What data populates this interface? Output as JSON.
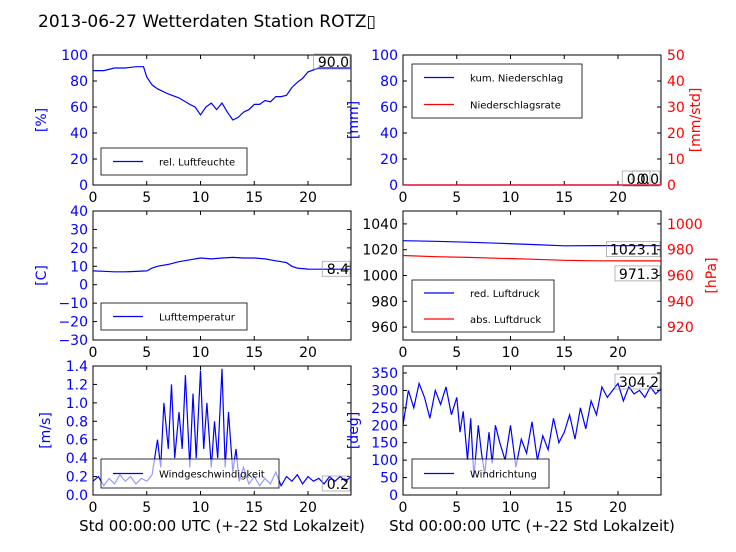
{
  "figure_title": "2013-06-27 Wetterdaten Station ROTZ▯",
  "colors": {
    "primary": "#0000ff",
    "secondary": "#ff0000",
    "axis": "#000000"
  },
  "chart_data": [
    {
      "id": "humidity",
      "type": "line",
      "title": "",
      "xlabel": "",
      "ylabel": "[%]",
      "ylabel_color": "#0000ff",
      "xlim": [
        0,
        24
      ],
      "ylim": [
        0,
        100
      ],
      "xticks": [
        "0",
        "5",
        "10",
        "15",
        "20"
      ],
      "yticks": [
        "0",
        "20",
        "40",
        "60",
        "80",
        "100"
      ],
      "current_value": "90.0",
      "legend_position": "lower-center",
      "series": [
        {
          "name": "rel. Luftfeuchte",
          "color": "#0000ff",
          "x": [
            0,
            1,
            2,
            3,
            4,
            4.7,
            5,
            5.5,
            6,
            7,
            8,
            9,
            9.5,
            10,
            10.5,
            11,
            11.5,
            12,
            12.5,
            13,
            13.5,
            14,
            14.5,
            15,
            15.5,
            16,
            16.5,
            17,
            17.5,
            18,
            18.5,
            19,
            19.5,
            20,
            21,
            22,
            23,
            24
          ],
          "y": [
            88,
            88,
            90,
            90,
            91,
            91,
            83,
            77,
            74,
            70,
            67,
            62,
            60,
            54,
            60,
            63,
            58,
            63,
            56,
            50,
            52,
            56,
            58,
            62,
            62,
            65,
            64,
            68,
            68,
            69,
            75,
            79,
            82,
            87,
            90,
            90,
            90,
            90
          ]
        }
      ]
    },
    {
      "id": "precipitation",
      "type": "line",
      "title": "",
      "xlabel": "",
      "ylabel": "[mm]",
      "ylabel_color": "#0000ff",
      "ylabel_right": "[mm/std]",
      "ylabel_right_color": "#ff0000",
      "xlim": [
        0,
        24
      ],
      "ylim": [
        0,
        100
      ],
      "ylim_right": [
        0,
        50
      ],
      "xticks": [
        "0",
        "5",
        "10",
        "15",
        "20"
      ],
      "yticks": [
        "0",
        "20",
        "40",
        "60",
        "80",
        "100"
      ],
      "yticks_right": [
        "0",
        "10",
        "20",
        "30",
        "40",
        "50"
      ],
      "current_value": "0.0",
      "current_value_right": "0.0",
      "legend_position": "upper-left",
      "series": [
        {
          "name": "kum. Niederschlag",
          "color": "#0000ff",
          "axis": "left",
          "x": [
            0,
            24
          ],
          "y": [
            0,
            0
          ]
        },
        {
          "name": "Niederschlagsrate",
          "color": "#ff0000",
          "axis": "right",
          "x": [
            0,
            24
          ],
          "y": [
            0,
            0
          ]
        }
      ]
    },
    {
      "id": "temperature",
      "type": "line",
      "title": "",
      "xlabel": "",
      "ylabel": "[C]",
      "ylabel_color": "#0000ff",
      "xlim": [
        0,
        24
      ],
      "ylim": [
        -30,
        40
      ],
      "xticks": [
        "0",
        "5",
        "10",
        "15",
        "20"
      ],
      "yticks": [
        "−30",
        "−20",
        "−10",
        "0",
        "10",
        "20",
        "30",
        "40"
      ],
      "current_value": "8.4",
      "legend_position": "lower-center",
      "series": [
        {
          "name": "Lufttemperatur",
          "color": "#0000ff",
          "x": [
            0,
            1,
            2,
            3,
            4,
            5,
            5.5,
            6,
            7,
            8,
            9,
            10,
            11,
            12,
            13,
            14,
            15,
            16,
            17,
            17.5,
            18,
            18.5,
            19,
            20,
            21,
            22,
            23,
            24
          ],
          "y": [
            7.5,
            7.3,
            7,
            7,
            7.2,
            7.5,
            9,
            10,
            11,
            12.5,
            13.5,
            14.5,
            14,
            14.5,
            14.8,
            14.5,
            14.5,
            14,
            13,
            12.5,
            12,
            10,
            9,
            8.5,
            8.4,
            8.4,
            8.4,
            8.4
          ]
        }
      ]
    },
    {
      "id": "pressure",
      "type": "line",
      "title": "",
      "xlabel": "",
      "ylabel": "",
      "ylabel_right": "[hPa]",
      "ylabel_right_color": "#ff0000",
      "xlim": [
        0,
        24
      ],
      "ylim": [
        950,
        1050
      ],
      "ylim_right": [
        910,
        1010
      ],
      "xticks": [
        "0",
        "5",
        "10",
        "15",
        "20"
      ],
      "yticks": [
        "960",
        "980",
        "1000",
        "1020",
        "1040"
      ],
      "yticks_right": [
        "920",
        "940",
        "960",
        "980",
        "1000"
      ],
      "current_value": "1023.1",
      "current_value_right": "971.3",
      "legend_position": "lower-left",
      "series": [
        {
          "name": "red. Luftdruck",
          "color": "#0000ff",
          "axis": "left",
          "x": [
            0,
            3,
            6,
            9,
            12,
            15,
            18,
            21,
            24
          ],
          "y": [
            1027,
            1026.5,
            1025.8,
            1025,
            1024,
            1023,
            1023.2,
            1023.1,
            1023.1
          ]
        },
        {
          "name": "abs. Luftdruck",
          "color": "#ff0000",
          "axis": "right",
          "x": [
            0,
            3,
            6,
            9,
            12,
            15,
            18,
            21,
            24
          ],
          "y": [
            975.5,
            974.6,
            974,
            973.3,
            972.6,
            971.8,
            971.4,
            971.3,
            971.3
          ]
        }
      ]
    },
    {
      "id": "windspeed",
      "type": "line",
      "title": "",
      "xlabel": "Std 00:00:00 UTC (+-22 Std Lokalzeit)",
      "ylabel": "[m/s]",
      "ylabel_color": "#0000ff",
      "xlim": [
        0,
        24
      ],
      "ylim": [
        0,
        1.4
      ],
      "xticks": [
        "0",
        "5",
        "10",
        "15",
        "20"
      ],
      "yticks": [
        "0.0",
        "0.2",
        "0.4",
        "0.6",
        "0.8",
        "1.0",
        "1.2",
        "1.4"
      ],
      "current_value": "0.2",
      "legend_position": "lower-center",
      "series": [
        {
          "name": "Windgeschwindigkeit",
          "color": "#0000ff",
          "x": [
            0,
            0.5,
            1,
            1.5,
            2,
            2.5,
            3,
            3.5,
            4,
            4.5,
            5,
            5.5,
            6,
            6.3,
            6.6,
            7,
            7.3,
            7.6,
            8,
            8.3,
            8.6,
            9,
            9.3,
            9.6,
            10,
            10.3,
            10.6,
            11,
            11.3,
            11.6,
            12,
            12.3,
            12.6,
            13,
            13.3,
            13.6,
            14,
            14.5,
            15,
            15.5,
            16,
            16.5,
            17,
            17.5,
            18,
            18.5,
            19,
            19.5,
            20,
            20.5,
            21,
            21.5,
            22,
            22.5,
            23,
            23.5,
            24
          ],
          "y": [
            0.15,
            0.2,
            0.1,
            0.18,
            0.12,
            0.22,
            0.15,
            0.2,
            0.12,
            0.18,
            0.15,
            0.22,
            0.6,
            0.3,
            1.0,
            0.5,
            1.2,
            0.4,
            0.9,
            0.5,
            1.3,
            0.3,
            1.1,
            0.4,
            1.35,
            0.5,
            1.0,
            0.3,
            0.8,
            0.4,
            1.37,
            0.3,
            0.9,
            0.25,
            0.5,
            0.15,
            0.3,
            0.12,
            0.2,
            0.1,
            0.18,
            0.12,
            0.25,
            0.1,
            0.2,
            0.15,
            0.22,
            0.12,
            0.2,
            0.15,
            0.18,
            0.12,
            0.2,
            0.15,
            0.2,
            0.15,
            0.2
          ]
        }
      ]
    },
    {
      "id": "winddirection",
      "type": "line",
      "title": "",
      "xlabel": "Std 00:00:00 UTC (+-22 Std Lokalzeit)",
      "ylabel": "[deg]",
      "ylabel_color": "#0000ff",
      "xlim": [
        0,
        24
      ],
      "ylim": [
        0,
        370
      ],
      "xticks": [
        "0",
        "5",
        "10",
        "15",
        "20"
      ],
      "yticks": [
        "0",
        "50",
        "100",
        "150",
        "200",
        "250",
        "300",
        "350"
      ],
      "current_value": "304.2",
      "legend_position": "lower-left",
      "series": [
        {
          "name": "Windrichtung",
          "color": "#0000ff",
          "x": [
            0,
            0.5,
            1,
            1.5,
            2,
            2.5,
            3,
            3.5,
            4,
            4.5,
            5,
            5.3,
            5.6,
            6,
            6.3,
            6.6,
            7,
            7.3,
            7.6,
            8,
            8.3,
            8.6,
            9,
            9.5,
            10,
            10.5,
            11,
            11.5,
            12,
            12.5,
            13,
            13.5,
            14,
            14.5,
            15,
            15.5,
            16,
            16.5,
            17,
            17.5,
            18,
            18.5,
            19,
            19.5,
            20,
            20.5,
            21,
            21.5,
            22,
            22.5,
            23,
            23.5,
            24
          ],
          "y": [
            200,
            300,
            250,
            320,
            280,
            220,
            300,
            260,
            310,
            230,
            280,
            180,
            240,
            100,
            220,
            50,
            200,
            120,
            60,
            180,
            90,
            200,
            150,
            100,
            200,
            80,
            160,
            120,
            210,
            100,
            170,
            130,
            220,
            150,
            180,
            230,
            160,
            250,
            190,
            270,
            230,
            310,
            280,
            300,
            320,
            270,
            310,
            290,
            300,
            280,
            310,
            290,
            304
          ]
        }
      ]
    }
  ]
}
